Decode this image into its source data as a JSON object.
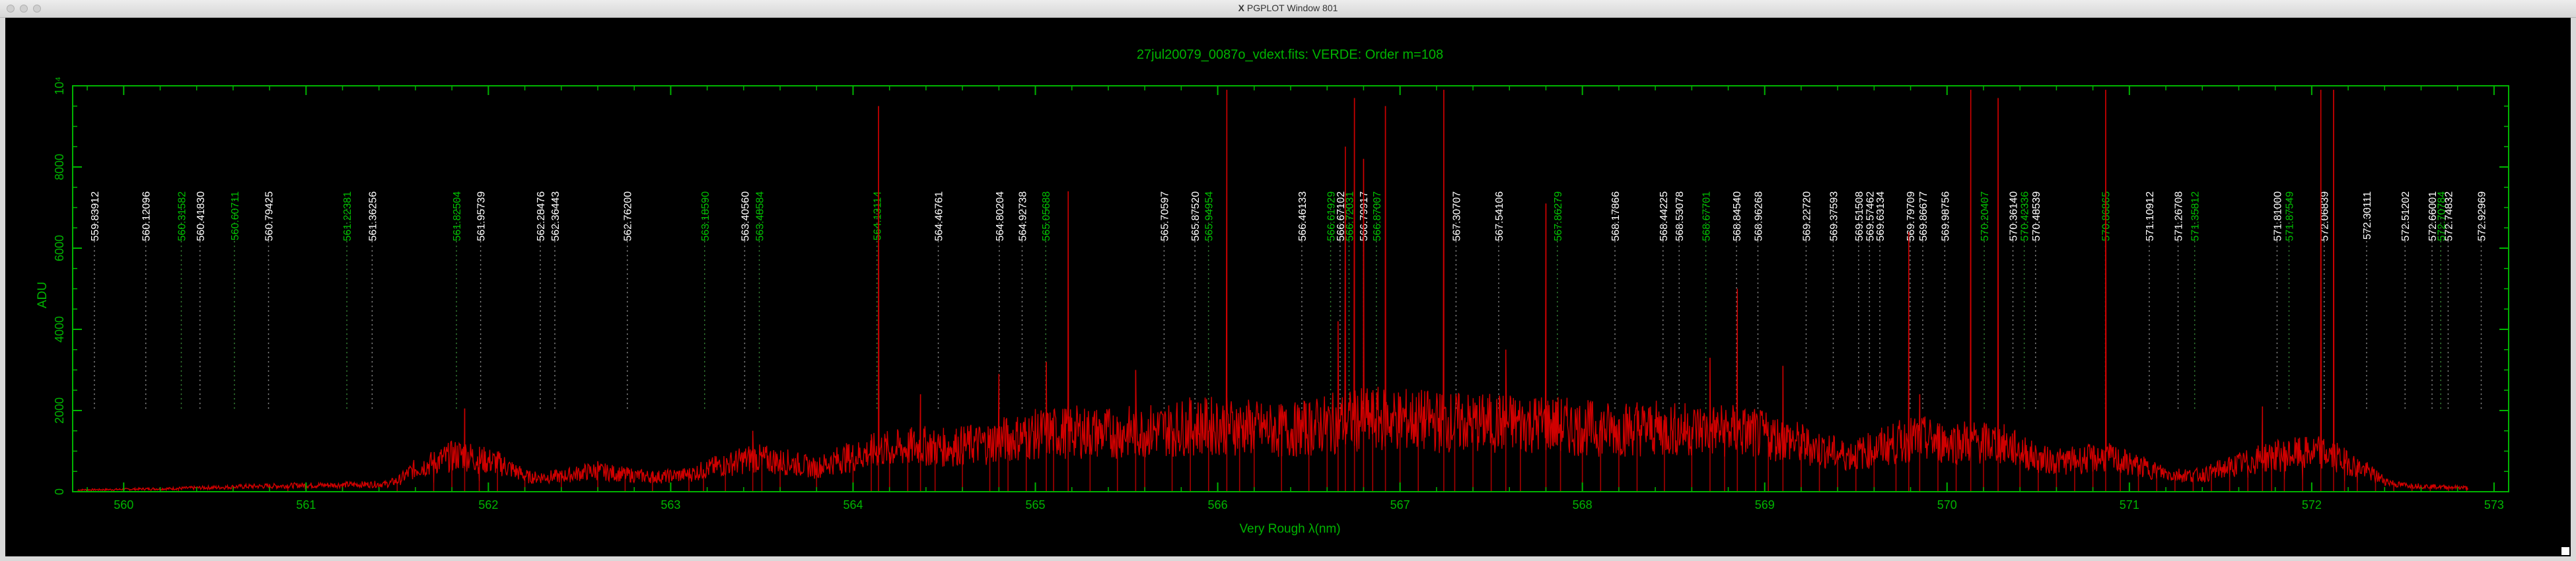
{
  "window": {
    "title": "PGPLOT Window 801",
    "x_logo": "X"
  },
  "colors": {
    "axes": "#00b400",
    "spectrum": "#d00000",
    "line_marker": "#8e8e8e",
    "label_white": "#ffffff",
    "label_green": "#00c000"
  },
  "chart_data": {
    "type": "line",
    "title": "27jul20079_0087o_vdext.fits: VERDE: Order m=108",
    "xlabel": "Very Rough λ(nm)",
    "ylabel": "ADU",
    "xlim": [
      559.72,
      573.08
    ],
    "ylim": [
      0,
      10000
    ],
    "x_ticks": [
      "560",
      "561",
      "562",
      "563",
      "564",
      "565",
      "566",
      "567",
      "568",
      "569",
      "570",
      "571",
      "572",
      "573"
    ],
    "x_tick_values": [
      560,
      561,
      562,
      563,
      564,
      565,
      566,
      567,
      568,
      569,
      570,
      571,
      572,
      573
    ],
    "y_ticks": [
      "0",
      "2000",
      "4000",
      "6000",
      "8000",
      "10⁴"
    ],
    "y_tick_values": [
      0,
      2000,
      4000,
      6000,
      8000,
      10000
    ],
    "grid": false,
    "series": [
      {
        "color": "#d00000",
        "x": [
          559.75,
          560.0,
          560.3,
          560.6,
          560.9,
          561.2,
          561.5,
          561.7,
          561.8,
          561.87,
          561.95,
          562.05,
          562.2,
          562.4,
          562.6,
          562.75,
          562.9,
          563.1,
          563.18,
          563.3,
          563.45,
          563.5,
          563.6,
          563.8,
          564.0,
          564.1,
          564.14,
          564.2,
          564.3,
          564.37,
          564.45,
          564.6,
          564.75,
          564.8,
          564.85,
          564.95,
          565.06,
          565.1,
          565.18,
          565.3,
          565.45,
          565.55,
          565.6,
          565.75,
          565.85,
          565.95,
          566.05,
          566.12,
          566.2,
          566.35,
          566.5,
          566.6,
          566.66,
          566.7,
          566.75,
          566.8,
          566.85,
          566.92,
          567.0,
          567.1,
          567.24,
          567.3,
          567.4,
          567.5,
          567.58,
          567.66,
          567.8,
          567.88,
          568.0,
          568.1,
          568.2,
          568.3,
          568.45,
          568.6,
          568.7,
          568.78,
          568.85,
          568.95,
          569.02,
          569.1,
          569.2,
          569.3,
          569.4,
          569.5,
          569.6,
          569.72,
          569.79,
          569.85,
          569.95,
          570.05,
          570.13,
          570.2,
          570.28,
          570.4,
          570.5,
          570.6,
          570.7,
          570.8,
          570.87,
          570.95,
          571.05,
          571.15,
          571.25,
          571.35,
          571.45,
          571.55,
          571.65,
          571.73,
          571.78,
          571.85,
          571.95,
          572.05,
          572.12,
          572.18,
          572.25,
          572.35,
          572.45,
          572.55,
          572.65,
          572.75,
          572.85
        ],
        "values": [
          40,
          60,
          80,
          120,
          150,
          170,
          190,
          220,
          1100,
          2050,
          250,
          650,
          280,
          260,
          750,
          300,
          320,
          380,
          550,
          400,
          1500,
          650,
          500,
          550,
          620,
          680,
          9500,
          700,
          800,
          2400,
          850,
          900,
          1000,
          2900,
          1100,
          1150,
          3200,
          1200,
          7400,
          1250,
          1300,
          3000,
          1350,
          1400,
          2000,
          1500,
          9900,
          1600,
          1500,
          1450,
          1400,
          1500,
          4200,
          8500,
          9700,
          8200,
          1900,
          9500,
          1800,
          1700,
          9900,
          1700,
          1600,
          1650,
          3500,
          1600,
          7100,
          1600,
          1550,
          1500,
          1400,
          2200,
          1450,
          1400,
          3300,
          1300,
          5000,
          1250,
          1100,
          3100,
          1050,
          950,
          900,
          850,
          800,
          900,
          6400,
          2400,
          800,
          750,
          9900,
          850,
          9700,
          800,
          700,
          650,
          600,
          550,
          9900,
          500,
          450,
          420,
          400,
          450,
          380,
          360,
          340,
          2100,
          1100,
          300,
          280,
          9900,
          9900,
          250,
          220,
          200,
          180,
          150,
          130,
          100,
          80
        ]
      }
    ],
    "line_labels": [
      {
        "x": 559.83912,
        "text": "559.83912",
        "color": "white"
      },
      {
        "x": 560.12096,
        "text": "560.12096",
        "color": "white"
      },
      {
        "x": 560.31582,
        "text": "560.31582",
        "color": "green"
      },
      {
        "x": 560.4183,
        "text": "560.41830",
        "color": "white"
      },
      {
        "x": 560.60711,
        "text": "560.60711",
        "color": "green"
      },
      {
        "x": 560.79425,
        "text": "560.79425",
        "color": "white"
      },
      {
        "x": 561.22381,
        "text": "561.22381",
        "color": "green"
      },
      {
        "x": 561.36256,
        "text": "561.36256",
        "color": "white"
      },
      {
        "x": 561.82504,
        "text": "561.82504",
        "color": "green"
      },
      {
        "x": 561.95739,
        "text": "561.95739",
        "color": "white"
      },
      {
        "x": 562.28476,
        "text": "562.28476",
        "color": "white"
      },
      {
        "x": 562.36443,
        "text": "562.36443",
        "color": "white"
      },
      {
        "x": 562.762,
        "text": "562.76200",
        "color": "white"
      },
      {
        "x": 563.1859,
        "text": "563.18590",
        "color": "green"
      },
      {
        "x": 563.4056,
        "text": "563.40560",
        "color": "white"
      },
      {
        "x": 563.48584,
        "text": "563.48584",
        "color": "green"
      },
      {
        "x": 564.13114,
        "text": "564.13114",
        "color": "green"
      },
      {
        "x": 564.46761,
        "text": "564.46761",
        "color": "white"
      },
      {
        "x": 564.80204,
        "text": "564.80204",
        "color": "white"
      },
      {
        "x": 564.92738,
        "text": "564.92738",
        "color": "white"
      },
      {
        "x": 565.05688,
        "text": "565.05688",
        "color": "green"
      },
      {
        "x": 565.70597,
        "text": "565.70597",
        "color": "white"
      },
      {
        "x": 565.8752,
        "text": "565.87520",
        "color": "white"
      },
      {
        "x": 565.94954,
        "text": "565.94954",
        "color": "green"
      },
      {
        "x": 566.46133,
        "text": "566.46133",
        "color": "white"
      },
      {
        "x": 566.61929,
        "text": "566.61929",
        "color": "green"
      },
      {
        "x": 566.67102,
        "text": "566.67102",
        "color": "white"
      },
      {
        "x": 566.72031,
        "text": "566.72031",
        "color": "green"
      },
      {
        "x": 566.79917,
        "text": "566.79917",
        "color": "white"
      },
      {
        "x": 566.87007,
        "text": "566.87007",
        "color": "green"
      },
      {
        "x": 567.30707,
        "text": "567.30707",
        "color": "white"
      },
      {
        "x": 567.54106,
        "text": "567.54106",
        "color": "white"
      },
      {
        "x": 567.86279,
        "text": "567.86279",
        "color": "green"
      },
      {
        "x": 568.17866,
        "text": "568.17866",
        "color": "white"
      },
      {
        "x": 568.44225,
        "text": "568.44225",
        "color": "white"
      },
      {
        "x": 568.53078,
        "text": "568.53078",
        "color": "white"
      },
      {
        "x": 568.67701,
        "text": "568.67701",
        "color": "green"
      },
      {
        "x": 568.8454,
        "text": "568.84540",
        "color": "white"
      },
      {
        "x": 568.96268,
        "text": "568.96268",
        "color": "white"
      },
      {
        "x": 569.2272,
        "text": "569.22720",
        "color": "white"
      },
      {
        "x": 569.37593,
        "text": "569.37593",
        "color": "white"
      },
      {
        "x": 569.51508,
        "text": "569.51508",
        "color": "white"
      },
      {
        "x": 569.57462,
        "text": "569.57462",
        "color": "white"
      },
      {
        "x": 569.63134,
        "text": "569.63134",
        "color": "white"
      },
      {
        "x": 569.79709,
        "text": "569.79709",
        "color": "white"
      },
      {
        "x": 569.86677,
        "text": "569.86677",
        "color": "white"
      },
      {
        "x": 569.98756,
        "text": "569.98756",
        "color": "white"
      },
      {
        "x": 570.20407,
        "text": "570.20407",
        "color": "green"
      },
      {
        "x": 570.3614,
        "text": "570.36140",
        "color": "white"
      },
      {
        "x": 570.42336,
        "text": "570.42336",
        "color": "green"
      },
      {
        "x": 570.48539,
        "text": "570.48539",
        "color": "white"
      },
      {
        "x": 570.86865,
        "text": "570.86865",
        "color": "green"
      },
      {
        "x": 571.10912,
        "text": "571.10912",
        "color": "white"
      },
      {
        "x": 571.26708,
        "text": "571.26708",
        "color": "white"
      },
      {
        "x": 571.35812,
        "text": "571.35812",
        "color": "green"
      },
      {
        "x": 571.87549,
        "text": "571.87549",
        "color": "green"
      },
      {
        "x": 571.81,
        "text": "571.81000",
        "color": "white"
      },
      {
        "x": 572.06839,
        "text": "572.06839",
        "color": "white"
      },
      {
        "x": 572.30111,
        "text": "572.30111",
        "color": "white"
      },
      {
        "x": 572.51202,
        "text": "572.51202",
        "color": "white"
      },
      {
        "x": 572.66001,
        "text": "572.66001",
        "color": "white"
      },
      {
        "x": 572.70784,
        "text": "572.70784",
        "color": "green"
      },
      {
        "x": 572.74832,
        "text": "572.74832",
        "color": "white"
      },
      {
        "x": 572.92969,
        "text": "572.92969",
        "color": "white"
      }
    ]
  }
}
